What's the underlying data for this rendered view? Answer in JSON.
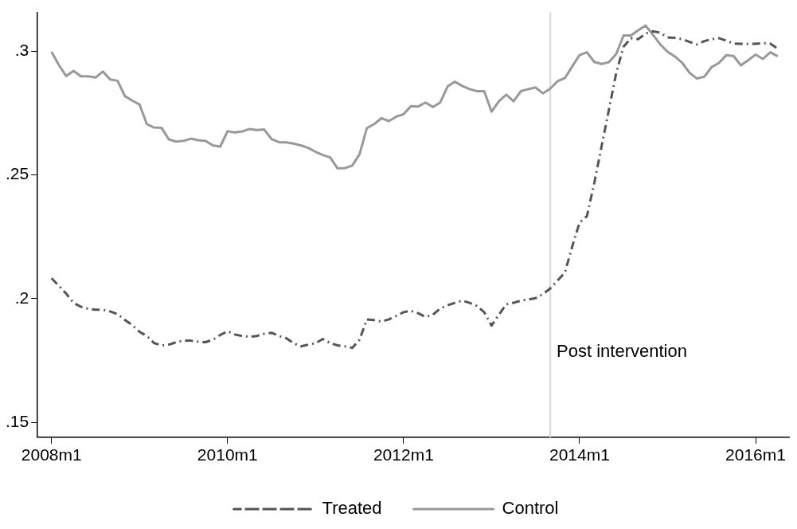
{
  "chart_data": {
    "type": "line",
    "x": [
      "2008-01",
      "2008-02",
      "2008-03",
      "2008-04",
      "2008-05",
      "2008-06",
      "2008-07",
      "2008-08",
      "2008-09",
      "2008-10",
      "2008-11",
      "2008-12",
      "2009-01",
      "2009-02",
      "2009-03",
      "2009-04",
      "2009-05",
      "2009-06",
      "2009-07",
      "2009-08",
      "2009-09",
      "2009-10",
      "2009-11",
      "2009-12",
      "2010-01",
      "2010-02",
      "2010-03",
      "2010-04",
      "2010-05",
      "2010-06",
      "2010-07",
      "2010-08",
      "2010-09",
      "2010-10",
      "2010-11",
      "2010-12",
      "2011-01",
      "2011-02",
      "2011-03",
      "2011-04",
      "2011-05",
      "2011-06",
      "2011-07",
      "2011-08",
      "2011-09",
      "2011-10",
      "2011-11",
      "2011-12",
      "2012-01",
      "2012-02",
      "2012-03",
      "2012-04",
      "2012-05",
      "2012-06",
      "2012-07",
      "2012-08",
      "2012-09",
      "2012-10",
      "2012-11",
      "2012-12",
      "2013-01",
      "2013-02",
      "2013-03",
      "2013-04",
      "2013-05",
      "2013-06",
      "2013-07",
      "2013-08",
      "2013-09",
      "2013-10",
      "2013-11",
      "2013-12",
      "2014-01",
      "2014-02",
      "2014-03",
      "2014-04",
      "2014-05",
      "2014-06",
      "2014-07",
      "2014-08",
      "2014-09",
      "2014-10",
      "2014-11",
      "2014-12",
      "2015-01",
      "2015-02",
      "2015-03",
      "2015-04",
      "2015-05",
      "2015-06",
      "2015-07",
      "2015-08",
      "2015-09",
      "2015-10",
      "2015-11",
      "2015-12",
      "2016-01",
      "2016-02",
      "2016-03",
      "2016-04"
    ],
    "series": [
      {
        "name": "Treated",
        "color": "#555555",
        "line_style": "dashed",
        "values": [
          0.2082,
          0.2052,
          0.202,
          0.1983,
          0.1967,
          0.1959,
          0.1955,
          0.1955,
          0.1948,
          0.1937,
          0.1914,
          0.1893,
          0.1866,
          0.1849,
          0.182,
          0.1811,
          0.1814,
          0.1824,
          0.183,
          0.183,
          0.1826,
          0.1824,
          0.1834,
          0.1853,
          0.1868,
          0.1855,
          0.1849,
          0.1846,
          0.1849,
          0.1858,
          0.1862,
          0.1849,
          0.184,
          0.182,
          0.1807,
          0.1814,
          0.182,
          0.1837,
          0.182,
          0.1811,
          0.1807,
          0.1801,
          0.1834,
          0.1916,
          0.1913,
          0.1907,
          0.1916,
          0.193,
          0.1945,
          0.1951,
          0.1941,
          0.1926,
          0.1935,
          0.196,
          0.1973,
          0.1983,
          0.1992,
          0.1983,
          0.197,
          0.1945,
          0.1891,
          0.1935,
          0.1977,
          0.1983,
          0.1992,
          0.1996,
          0.2002,
          0.2018,
          0.2041,
          0.2073,
          0.2105,
          0.2211,
          0.2307,
          0.2333,
          0.2466,
          0.2615,
          0.2763,
          0.2912,
          0.3018,
          0.3052,
          0.3048,
          0.3071,
          0.308,
          0.3074,
          0.3055,
          0.3053,
          0.3048,
          0.3037,
          0.3027,
          0.304,
          0.3048,
          0.3052,
          0.3042,
          0.303,
          0.3029,
          0.3029,
          0.3029,
          0.3032,
          0.303,
          0.301
        ]
      },
      {
        "name": "Control",
        "color": "#999999",
        "line_style": "solid",
        "values": [
          0.2997,
          0.2944,
          0.2899,
          0.292,
          0.2898,
          0.2898,
          0.2893,
          0.2917,
          0.2885,
          0.288,
          0.2818,
          0.28,
          0.2784,
          0.2705,
          0.2691,
          0.269,
          0.2643,
          0.2634,
          0.2637,
          0.2646,
          0.264,
          0.2637,
          0.2619,
          0.2614,
          0.2676,
          0.2671,
          0.2675,
          0.2685,
          0.2681,
          0.2683,
          0.2644,
          0.2632,
          0.2631,
          0.2626,
          0.2619,
          0.2609,
          0.2593,
          0.258,
          0.257,
          0.2526,
          0.2527,
          0.2537,
          0.2583,
          0.2689,
          0.2705,
          0.2729,
          0.2717,
          0.2735,
          0.2745,
          0.2777,
          0.2776,
          0.2792,
          0.2774,
          0.2792,
          0.2857,
          0.2876,
          0.2859,
          0.2846,
          0.2838,
          0.2838,
          0.2755,
          0.2797,
          0.2824,
          0.2797,
          0.2838,
          0.2846,
          0.2853,
          0.2829,
          0.2848,
          0.2878,
          0.2891,
          0.2938,
          0.2984,
          0.2995,
          0.2956,
          0.2948,
          0.2955,
          0.2988,
          0.3063,
          0.3063,
          0.3084,
          0.3103,
          0.3066,
          0.3027,
          0.2997,
          0.2978,
          0.2952,
          0.2912,
          0.2889,
          0.2896,
          0.2935,
          0.2952,
          0.2983,
          0.298,
          0.2942,
          0.2963,
          0.2986,
          0.2968,
          0.2995,
          0.2979
        ]
      }
    ],
    "xlim": [
      "2007-11-04",
      "2016-05-18"
    ],
    "xticks": [
      {
        "value": "2008-01",
        "label": "2008m1"
      },
      {
        "value": "2010-01",
        "label": "2010m1"
      },
      {
        "value": "2012-01",
        "label": "2012m1"
      },
      {
        "value": "2014-01",
        "label": "2014m1"
      },
      {
        "value": "2016-01",
        "label": "2016m1"
      }
    ],
    "ylim": [
      0.144,
      0.3156
    ],
    "yticks": [
      {
        "value": 0.15,
        "label": ".15"
      },
      {
        "value": 0.2,
        "label": ".2"
      },
      {
        "value": 0.25,
        "label": ".25"
      },
      {
        "value": 0.3,
        "label": ".3"
      }
    ],
    "ref_lines": [
      {
        "axis": "x",
        "value": "2013-09",
        "label": "Post intervention",
        "color": "#dddddd"
      }
    ],
    "grid": false,
    "legend": "bottom",
    "marker": "none"
  }
}
